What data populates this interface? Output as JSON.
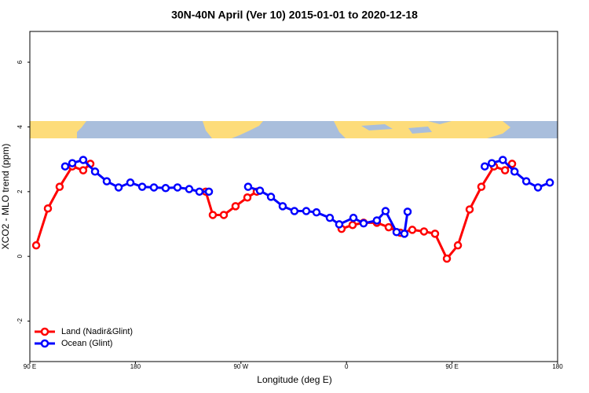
{
  "chart_data": {
    "type": "line",
    "title": "30N-40N April (Ver 10)   2015-01-01 to 2020-12-18",
    "x_label": "Longitude (deg E)",
    "y_label": "XCO2 - MLO trend (ppm)",
    "xlim": [
      90,
      540
    ],
    "ylim": [
      -3.25,
      6.95
    ],
    "xticks": [
      {
        "value": 90,
        "label": "90 E"
      },
      180,
      {
        "value": 270,
        "label": "90 W"
      },
      {
        "value": 360,
        "label": "0"
      },
      {
        "value": 450,
        "label": "90 E"
      },
      {
        "value": 540,
        "label": "180"
      }
    ],
    "yticks": [
      -2,
      0,
      2,
      4,
      6
    ],
    "legend": "bottomleft",
    "series": [
      {
        "name": "Land (Nadir&Glint)",
        "color": "#ff0000",
        "x": [
          95.4,
          105.4,
          115.4,
          126.2,
          135.5,
          141.6,
          190,
          240.0,
          246.0,
          255.4,
          265.4,
          275.5,
          283.5,
          320,
          355.8,
          365.2,
          374.6,
          385.9,
          396.0,
          406.0,
          416.1,
          426.1,
          435.5,
          445.6,
          455.0,
          465.0,
          475.0,
          485.8,
          495.2,
          501.2
        ],
        "values": [
          0.34,
          1.48,
          2.15,
          2.78,
          2.66,
          2.86,
          null,
          2.0,
          1.28,
          1.28,
          1.55,
          1.82,
          2.0,
          null,
          0.85,
          0.97,
          1.04,
          1.04,
          0.9,
          0.73,
          0.82,
          0.77,
          0.7,
          -0.07,
          0.34,
          1.45,
          2.15,
          2.78,
          2.66,
          2.86
        ]
      },
      {
        "name": "Ocean (Glint)",
        "color": "#0000ff",
        "x": [
          120.1,
          126.2,
          135.5,
          145.6,
          155.6,
          165.7,
          175.7,
          185.8,
          195.8,
          205.8,
          215.9,
          225.9,
          234.6,
          242.7,
          260,
          276.1,
          286.2,
          295.6,
          305.6,
          315.6,
          325.7,
          334.4,
          345.8,
          353.8,
          365.9,
          374.6,
          385.9,
          393.3,
          402.7,
          409.4,
          412.1,
          445,
          477.9,
          483.9,
          493.3,
          503.3,
          513.3,
          523.3,
          533.4
        ],
        "values": [
          2.78,
          2.88,
          2.98,
          2.62,
          2.32,
          2.13,
          2.28,
          2.15,
          2.13,
          2.11,
          2.13,
          2.08,
          2.0,
          2.0,
          null,
          2.15,
          2.03,
          1.84,
          1.55,
          1.4,
          1.4,
          1.36,
          1.19,
          0.99,
          1.19,
          1.02,
          1.11,
          1.4,
          0.75,
          0.7,
          1.38,
          null,
          2.78,
          2.88,
          2.98,
          2.62,
          2.32,
          2.13,
          2.28
        ]
      }
    ]
  }
}
